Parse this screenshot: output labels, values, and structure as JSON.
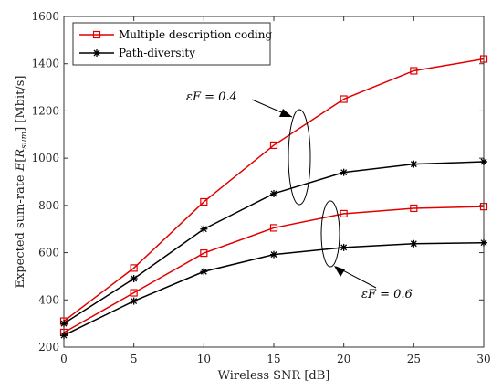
{
  "chart_data": {
    "type": "line",
    "title": "",
    "xlabel": "Wireless SNR [dB]",
    "ylabel": "Expected sum-rate E[R_sum] [Mbit/s]",
    "xlim": [
      0,
      30
    ],
    "ylim": [
      200,
      1600
    ],
    "x": [
      0,
      5,
      10,
      15,
      20,
      25,
      30
    ],
    "x_ticks": [
      "0",
      "5",
      "10",
      "15",
      "20",
      "25",
      "30"
    ],
    "y_ticks": [
      "200",
      "400",
      "600",
      "800",
      "1000",
      "1200",
      "1400",
      "1600"
    ],
    "grid": false,
    "legend_position": "top-left",
    "legend": [
      "Multiple description coding",
      "Path-diversity"
    ],
    "series": [
      {
        "name": "Multiple description coding",
        "group": "εF = 0.4",
        "color": "#e00000",
        "marker": "square",
        "values": [
          310,
          535,
          815,
          1055,
          1250,
          1370,
          1420
        ]
      },
      {
        "name": "Path-diversity",
        "group": "εF = 0.4",
        "color": "#000000",
        "marker": "asterisk",
        "values": [
          300,
          490,
          700,
          850,
          940,
          975,
          985
        ]
      },
      {
        "name": "Multiple description coding",
        "group": "εF = 0.6",
        "color": "#e00000",
        "marker": "square",
        "values": [
          262,
          430,
          598,
          705,
          765,
          788,
          795
        ]
      },
      {
        "name": "Path-diversity",
        "group": "εF = 0.6",
        "color": "#000000",
        "marker": "asterisk",
        "values": [
          250,
          395,
          520,
          592,
          622,
          638,
          642
        ]
      }
    ],
    "annotations": [
      "εF = 0.4",
      "εF = 0.6"
    ]
  }
}
